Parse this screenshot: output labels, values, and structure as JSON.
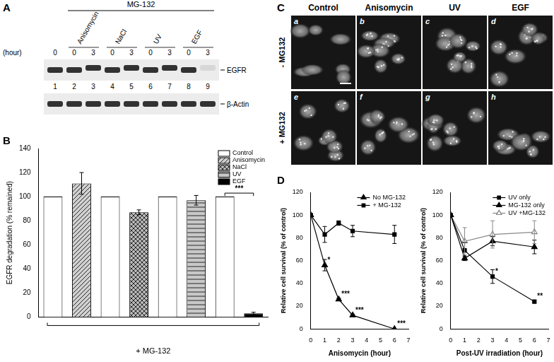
{
  "panel_labels": [
    "A",
    "B",
    "C",
    "D"
  ],
  "blot": {
    "bracket_label": "MG-132",
    "time_label": "(hour)",
    "times": [
      0,
      0,
      3,
      0,
      3,
      0,
      3,
      0,
      3
    ],
    "treatments": [
      "Anisomycin",
      "NaCl",
      "UV",
      "EGF"
    ],
    "rows": [
      "EGFR",
      "β-Actin"
    ],
    "lanes": [
      1,
      2,
      3,
      4,
      5,
      6,
      7,
      8,
      9
    ]
  },
  "micrographs": {
    "columns": [
      "Control",
      "Anisomycin",
      "UV",
      "EGF"
    ],
    "rows": [
      "- MG132",
      "+ MG132"
    ],
    "letters": [
      "a",
      "b",
      "c",
      "d",
      "e",
      "f",
      "g",
      "h"
    ]
  },
  "chart_data": [
    {
      "type": "bar",
      "ylabel": "EGFR degradation (% remained)",
      "xlabel": "+ MG-132",
      "categories": [
        null,
        null,
        null,
        null,
        null,
        null,
        null,
        null
      ],
      "series": [
        {
          "name": "Control",
          "color": "#ffffff",
          "values": [
            100,
            null,
            100,
            null,
            100,
            null,
            100,
            null
          ]
        },
        {
          "name": "Anisomycin",
          "color": "#d0d0d0",
          "values": [
            null,
            111,
            null,
            null,
            null,
            null,
            null,
            null
          ],
          "errors": [
            null,
            9,
            null,
            null,
            null,
            null,
            null,
            null
          ]
        },
        {
          "name": "NaCl",
          "color": "#b8b8b8",
          "values": [
            null,
            null,
            null,
            87,
            null,
            null,
            null,
            null
          ],
          "errors": [
            null,
            null,
            null,
            2,
            null,
            null,
            null,
            null
          ]
        },
        {
          "name": "UV",
          "color": "#c8c8c8",
          "values": [
            null,
            null,
            null,
            null,
            null,
            97,
            null,
            null
          ],
          "errors": [
            null,
            null,
            null,
            null,
            null,
            4,
            null,
            null
          ]
        },
        {
          "name": "EGF",
          "color": "#000000",
          "values": [
            null,
            null,
            null,
            null,
            null,
            null,
            null,
            3
          ],
          "errors": [
            null,
            null,
            null,
            null,
            null,
            null,
            null,
            1
          ]
        }
      ],
      "ylim": [
        0,
        140
      ],
      "yticks": [
        0,
        20,
        40,
        60,
        80,
        100,
        120,
        140
      ],
      "grid": false,
      "legend": "upper right",
      "annotations": [
        {
          "text": "***",
          "between": [
            6,
            7
          ]
        }
      ]
    },
    {
      "type": "line",
      "xlabel": "Anisomycin (hour)",
      "ylabel": "Relative cell survival (% of control)",
      "x": [
        0,
        1,
        2,
        3,
        6
      ],
      "series": [
        {
          "name": "No MG-132",
          "color": "#000000",
          "marker": "triangle",
          "values": [
            100,
            56,
            26,
            12,
            0
          ],
          "errors": [
            0,
            5,
            1,
            1,
            0
          ]
        },
        {
          "name": "+ MG-132",
          "color": "#000000",
          "marker": "square",
          "values": [
            100,
            83,
            93,
            86,
            83
          ],
          "errors": [
            0,
            7,
            2,
            5,
            8
          ]
        }
      ],
      "xlim": [
        0,
        7
      ],
      "xticks": [
        0,
        1,
        2,
        3,
        4,
        5,
        6,
        7
      ],
      "ylim": [
        0,
        120
      ],
      "yticks": [
        0,
        20,
        40,
        60,
        80,
        100,
        120
      ],
      "grid": false,
      "legend": "upper right",
      "annotations": [
        {
          "text": "*",
          "x": 1,
          "y": 56
        },
        {
          "text": "***",
          "x": 2,
          "y": 26
        },
        {
          "text": "***",
          "x": 3,
          "y": 12
        },
        {
          "text": "***",
          "x": 6,
          "y": 0
        }
      ]
    },
    {
      "type": "line",
      "xlabel": "Post-UV irradiation (hour)",
      "ylabel": "Relative cell survival (% of control)",
      "x": [
        0,
        1,
        3,
        6
      ],
      "series": [
        {
          "name": "UV only",
          "color": "#000000",
          "marker": "square",
          "values": [
            100,
            69,
            46,
            24
          ],
          "errors": [
            0,
            7,
            6,
            1
          ]
        },
        {
          "name": "MG-132 only",
          "color": "#000000",
          "marker": "triangle",
          "values": [
            100,
            62,
            77,
            72
          ],
          "errors": [
            0,
            2,
            4,
            6
          ]
        },
        {
          "name": "UV +MG-132",
          "color": "#888888",
          "marker": "triangle-open",
          "values": [
            100,
            77,
            83,
            85
          ],
          "errors": [
            0,
            12,
            12,
            10
          ]
        }
      ],
      "xlim": [
        0,
        7
      ],
      "xticks": [
        0,
        1,
        2,
        3,
        4,
        5,
        6,
        7
      ],
      "ylim": [
        0,
        120
      ],
      "yticks": [
        0,
        20,
        40,
        60,
        80,
        100,
        120
      ],
      "grid": false,
      "legend": "upper right",
      "annotations": [
        {
          "text": "*",
          "x": 3,
          "y": 46
        },
        {
          "text": "**",
          "x": 6,
          "y": 24
        }
      ]
    }
  ]
}
